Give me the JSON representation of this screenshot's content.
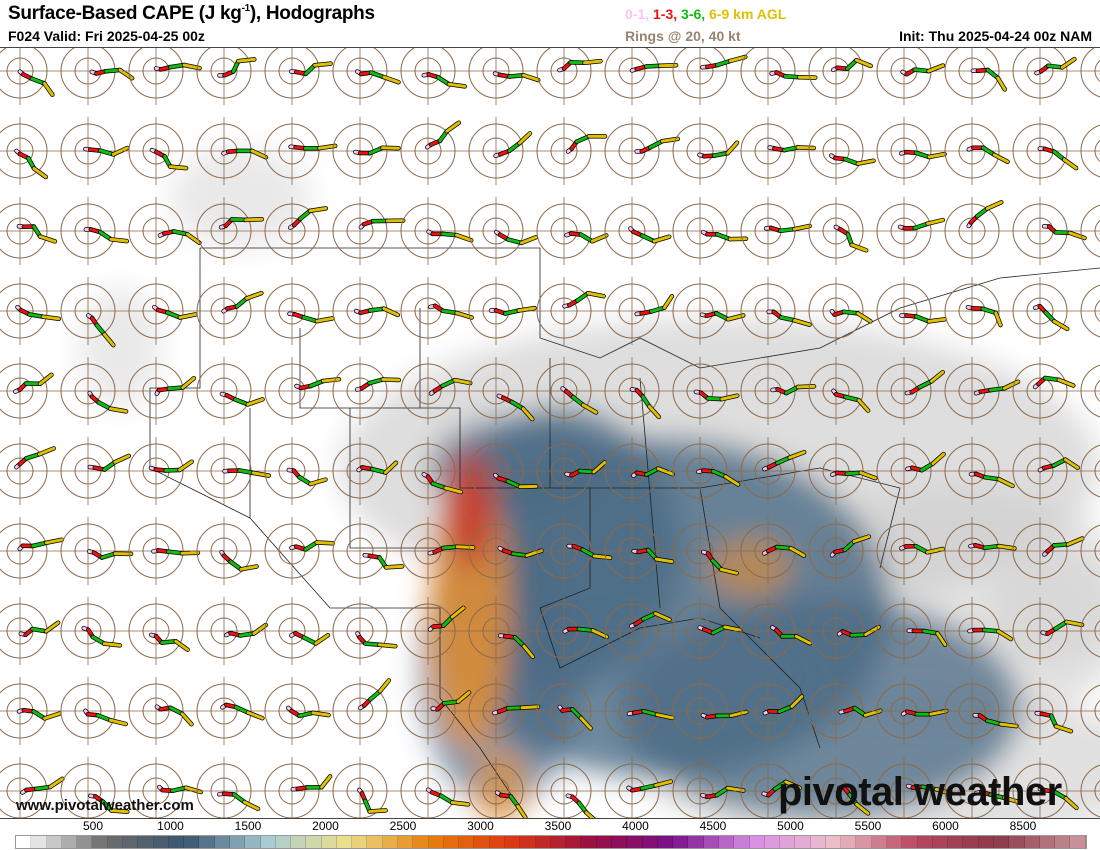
{
  "header": {
    "title": "Surface-Based CAPE (J kg",
    "title_sup": "-1",
    "title_suffix": "), Hodographs",
    "valid": "F024 Valid: Fri 2025-04-25 00z",
    "legend": [
      {
        "label": "0-1,",
        "color": "#f4c6f0"
      },
      {
        "label": "1-3,",
        "color": "#ee1111"
      },
      {
        "label": "3-6,",
        "color": "#11bb11"
      },
      {
        "label": "6-9 km AGL",
        "color": "#e0c000"
      }
    ],
    "rings": "Rings @ 20, 40 kt",
    "init": "Init: Thu 2025-04-24 00z NAM"
  },
  "footer": {
    "site": "www.pivotalweather.com",
    "logo": "pivotal weather"
  },
  "colorbar": {
    "labels": [
      "500",
      "1000",
      "1500",
      "2000",
      "2500",
      "3000",
      "3500",
      "4000",
      "4500",
      "5000",
      "5500",
      "6000",
      "8500"
    ],
    "anchors": [
      "#ffffff",
      "#6e6e6e",
      "#3a5570",
      "#a8ccd4",
      "#ece08a",
      "#e8800e",
      "#dd3a14",
      "#9a1040",
      "#7a108a",
      "#d88ee6",
      "#ecc0c8",
      "#b84860",
      "#8a3a48",
      "#c89098"
    ]
  },
  "map": {
    "ring_color": "#8b6a4a",
    "cape_colors": {
      "low": "#c8c8c8",
      "mid": "#4a6a84",
      "high": "#e89030",
      "max": "#c03030"
    }
  }
}
